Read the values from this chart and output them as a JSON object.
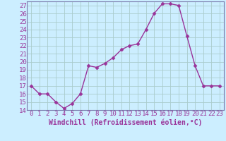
{
  "x": [
    0,
    1,
    2,
    3,
    4,
    5,
    6,
    7,
    8,
    9,
    10,
    11,
    12,
    13,
    14,
    15,
    16,
    17,
    18,
    19,
    20,
    21,
    22,
    23
  ],
  "y": [
    17,
    16,
    16,
    15,
    14.2,
    14.8,
    16,
    19.5,
    19.3,
    19.8,
    20.5,
    21.5,
    22,
    22.2,
    24,
    26,
    27.2,
    27.2,
    27,
    23.2,
    19.5,
    17,
    17,
    17
  ],
  "line_color": "#993399",
  "marker": "D",
  "marker_size": 2.5,
  "bg_color": "#cceeff",
  "grid_color": "#aacccc",
  "xlabel": "Windchill (Refroidissement éolien,°C)",
  "ylim": [
    14,
    27.5
  ],
  "xlim": [
    -0.5,
    23.5
  ],
  "yticks": [
    14,
    15,
    16,
    17,
    18,
    19,
    20,
    21,
    22,
    23,
    24,
    25,
    26,
    27
  ],
  "xticks": [
    0,
    1,
    2,
    3,
    4,
    5,
    6,
    7,
    8,
    9,
    10,
    11,
    12,
    13,
    14,
    15,
    16,
    17,
    18,
    19,
    20,
    21,
    22,
    23
  ],
  "xlabel_fontsize": 7,
  "tick_fontsize": 6.5,
  "line_width": 1.0,
  "spine_color": "#7777aa"
}
